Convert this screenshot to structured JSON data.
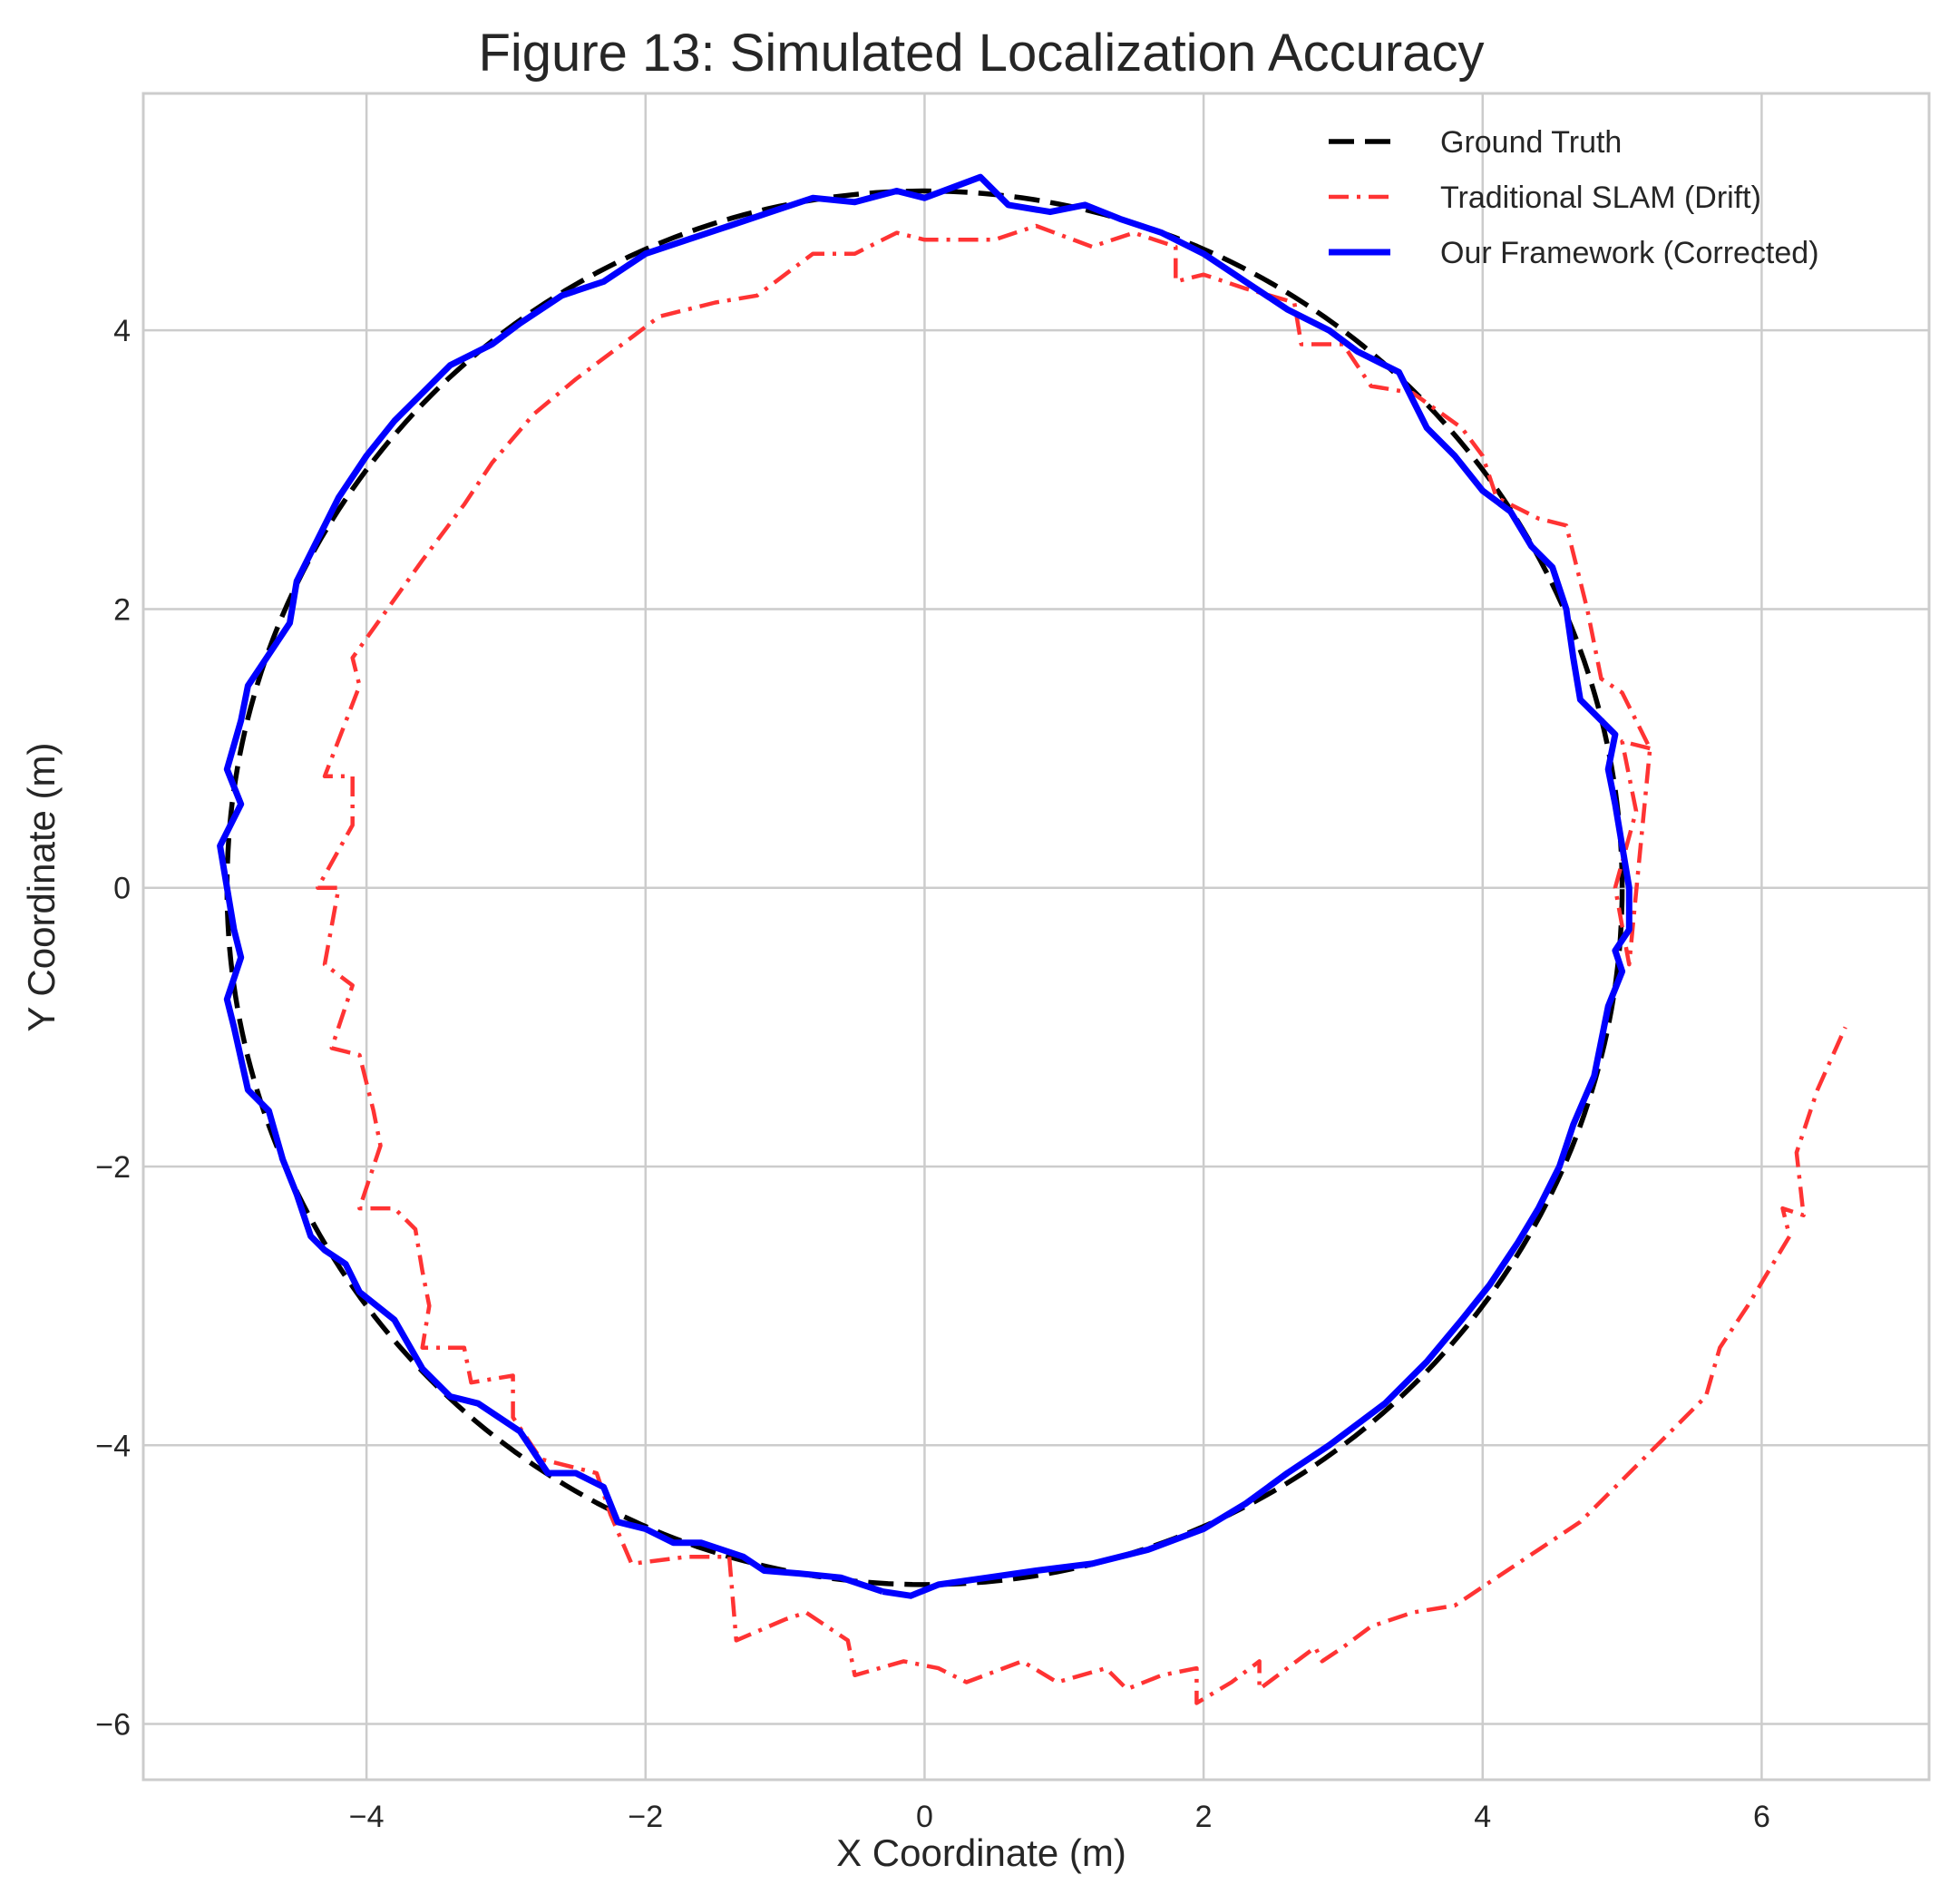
{
  "chart_data": {
    "type": "line",
    "title": "Figure 13: Simulated Localization Accuracy",
    "xlabel": "X Coordinate (m)",
    "ylabel": "Y Coordinate (m)",
    "xlim": [
      -5.6,
      7.2
    ],
    "ylim": [
      -6.4,
      5.7
    ],
    "xticks": [
      -4,
      -2,
      0,
      2,
      4,
      6
    ],
    "yticks": [
      -6,
      -4,
      -2,
      0,
      2,
      4
    ],
    "xtick_labels": [
      "−4",
      "−2",
      "0",
      "2",
      "4",
      "6"
    ],
    "ytick_labels": [
      "−6",
      "−4",
      "−2",
      "0",
      "2",
      "4"
    ],
    "grid": true,
    "legend_position": "top-right",
    "series": [
      {
        "name": "Ground Truth",
        "color": "#000000",
        "style": "dashed",
        "shape": "circle",
        "center": [
          0,
          0
        ],
        "radius": 5.0
      },
      {
        "name": "Traditional SLAM (Drift)",
        "color": "#ff3333",
        "style": "dashdot",
        "points": [
          [
            5.2,
            1.0
          ],
          [
            5.0,
            1.05
          ],
          [
            5.1,
            0.55
          ],
          [
            4.95,
            0.0
          ],
          [
            5.05,
            -0.55
          ],
          [
            5.2,
            1.0
          ],
          [
            5.0,
            1.4
          ],
          [
            4.85,
            1.5
          ],
          [
            4.75,
            2.0
          ],
          [
            4.6,
            2.6
          ],
          [
            4.4,
            2.65
          ],
          [
            4.1,
            2.8
          ],
          [
            4.0,
            3.1
          ],
          [
            3.85,
            3.3
          ],
          [
            3.5,
            3.55
          ],
          [
            3.2,
            3.6
          ],
          [
            3.0,
            3.9
          ],
          [
            2.7,
            3.9
          ],
          [
            2.65,
            4.2
          ],
          [
            2.3,
            4.3
          ],
          [
            2.0,
            4.4
          ],
          [
            1.8,
            4.35
          ],
          [
            1.8,
            4.6
          ],
          [
            1.5,
            4.7
          ],
          [
            1.2,
            4.6
          ],
          [
            0.8,
            4.75
          ],
          [
            0.5,
            4.65
          ],
          [
            0.0,
            4.65
          ],
          [
            -0.2,
            4.7
          ],
          [
            -0.5,
            4.55
          ],
          [
            -0.8,
            4.55
          ],
          [
            -1.0,
            4.4
          ],
          [
            -1.2,
            4.25
          ],
          [
            -1.5,
            4.2
          ],
          [
            -1.9,
            4.1
          ],
          [
            -2.1,
            3.95
          ],
          [
            -2.5,
            3.65
          ],
          [
            -2.8,
            3.4
          ],
          [
            -3.1,
            3.05
          ],
          [
            -3.3,
            2.75
          ],
          [
            -3.6,
            2.35
          ],
          [
            -3.85,
            2.0
          ],
          [
            -4.1,
            1.65
          ],
          [
            -4.05,
            1.45
          ],
          [
            -4.3,
            0.8
          ],
          [
            -4.1,
            0.8
          ],
          [
            -4.1,
            0.45
          ],
          [
            -4.35,
            0.0
          ],
          [
            -4.2,
            0.0
          ],
          [
            -4.3,
            -0.55
          ],
          [
            -4.1,
            -0.7
          ],
          [
            -4.25,
            -1.15
          ],
          [
            -4.05,
            -1.2
          ],
          [
            -3.95,
            -1.6
          ],
          [
            -3.9,
            -1.85
          ],
          [
            -4.05,
            -2.3
          ],
          [
            -3.8,
            -2.3
          ],
          [
            -3.65,
            -2.45
          ],
          [
            -3.6,
            -2.75
          ],
          [
            -3.55,
            -3.0
          ],
          [
            -3.6,
            -3.3
          ],
          [
            -3.3,
            -3.3
          ],
          [
            -3.25,
            -3.55
          ],
          [
            -2.95,
            -3.5
          ],
          [
            -2.95,
            -3.8
          ],
          [
            -2.75,
            -4.1
          ],
          [
            -2.55,
            -4.15
          ],
          [
            -2.35,
            -4.2
          ],
          [
            -2.25,
            -4.5
          ],
          [
            -2.1,
            -4.85
          ],
          [
            -1.7,
            -4.8
          ],
          [
            -1.4,
            -4.8
          ],
          [
            -1.35,
            -5.4
          ],
          [
            -1.0,
            -5.25
          ],
          [
            -0.85,
            -5.2
          ],
          [
            -0.55,
            -5.4
          ],
          [
            -0.5,
            -5.65
          ],
          [
            -0.15,
            -5.55
          ],
          [
            0.1,
            -5.6
          ],
          [
            0.3,
            -5.7
          ],
          [
            0.7,
            -5.55
          ],
          [
            0.95,
            -5.7
          ],
          [
            1.3,
            -5.6
          ],
          [
            1.45,
            -5.75
          ],
          [
            1.7,
            -5.65
          ],
          [
            1.95,
            -5.6
          ],
          [
            1.95,
            -5.85
          ],
          [
            2.2,
            -5.7
          ],
          [
            2.4,
            -5.55
          ],
          [
            2.4,
            -5.75
          ],
          [
            2.8,
            -5.45
          ],
          [
            2.85,
            -5.55
          ],
          [
            3.0,
            -5.45
          ],
          [
            3.2,
            -5.3
          ],
          [
            3.5,
            -5.2
          ],
          [
            3.8,
            -5.15
          ],
          [
            4.1,
            -4.95
          ],
          [
            4.4,
            -4.75
          ],
          [
            4.7,
            -4.55
          ],
          [
            5.0,
            -4.25
          ],
          [
            5.3,
            -3.95
          ],
          [
            5.6,
            -3.65
          ],
          [
            5.7,
            -3.3
          ],
          [
            5.9,
            -3.0
          ],
          [
            6.2,
            -2.5
          ],
          [
            6.15,
            -2.3
          ],
          [
            6.3,
            -2.35
          ],
          [
            6.25,
            -1.9
          ],
          [
            6.4,
            -1.45
          ],
          [
            6.6,
            -1.0
          ]
        ]
      },
      {
        "name": "Our Framework (Corrected)",
        "color": "#0000ff",
        "style": "solid",
        "points": [
          [
            -0.3,
            -5.05
          ],
          [
            -0.1,
            -5.08
          ],
          [
            0.1,
            -5.0
          ],
          [
            0.45,
            -4.95
          ],
          [
            0.8,
            -4.9
          ],
          [
            1.2,
            -4.85
          ],
          [
            1.6,
            -4.75
          ],
          [
            2.0,
            -4.6
          ],
          [
            2.3,
            -4.42
          ],
          [
            2.6,
            -4.2
          ],
          [
            2.9,
            -4.0
          ],
          [
            3.3,
            -3.7
          ],
          [
            3.6,
            -3.4
          ],
          [
            3.85,
            -3.1
          ],
          [
            4.05,
            -2.85
          ],
          [
            4.25,
            -2.55
          ],
          [
            4.4,
            -2.3
          ],
          [
            4.55,
            -2.0
          ],
          [
            4.65,
            -1.7
          ],
          [
            4.8,
            -1.35
          ],
          [
            4.85,
            -1.1
          ],
          [
            4.9,
            -0.85
          ],
          [
            5.0,
            -0.6
          ],
          [
            4.95,
            -0.45
          ],
          [
            5.05,
            -0.3
          ],
          [
            5.05,
            0.0
          ],
          [
            5.0,
            0.3
          ],
          [
            4.95,
            0.6
          ],
          [
            4.9,
            0.85
          ],
          [
            4.95,
            1.1
          ],
          [
            4.7,
            1.35
          ],
          [
            4.65,
            1.65
          ],
          [
            4.6,
            2.0
          ],
          [
            4.5,
            2.3
          ],
          [
            4.35,
            2.45
          ],
          [
            4.2,
            2.7
          ],
          [
            4.0,
            2.85
          ],
          [
            3.8,
            3.1
          ],
          [
            3.6,
            3.3
          ],
          [
            3.5,
            3.5
          ],
          [
            3.4,
            3.7
          ],
          [
            3.1,
            3.85
          ],
          [
            2.9,
            4.0
          ],
          [
            2.6,
            4.15
          ],
          [
            2.3,
            4.35
          ],
          [
            2.0,
            4.55
          ],
          [
            1.7,
            4.7
          ],
          [
            1.4,
            4.8
          ],
          [
            1.15,
            4.9
          ],
          [
            0.9,
            4.85
          ],
          [
            0.6,
            4.9
          ],
          [
            0.4,
            5.1
          ],
          [
            0.0,
            4.95
          ],
          [
            -0.2,
            5.0
          ],
          [
            -0.5,
            4.92
          ],
          [
            -0.8,
            4.95
          ],
          [
            -1.1,
            4.85
          ],
          [
            -1.4,
            4.75
          ],
          [
            -1.7,
            4.65
          ],
          [
            -2.0,
            4.55
          ],
          [
            -2.3,
            4.35
          ],
          [
            -2.6,
            4.25
          ],
          [
            -2.9,
            4.05
          ],
          [
            -3.1,
            3.9
          ],
          [
            -3.4,
            3.75
          ],
          [
            -3.6,
            3.55
          ],
          [
            -3.8,
            3.35
          ],
          [
            -4.0,
            3.1
          ],
          [
            -4.2,
            2.8
          ],
          [
            -4.35,
            2.5
          ],
          [
            -4.5,
            2.2
          ],
          [
            -4.55,
            1.9
          ],
          [
            -4.75,
            1.6
          ],
          [
            -4.85,
            1.45
          ],
          [
            -4.9,
            1.2
          ],
          [
            -5.0,
            0.85
          ],
          [
            -4.9,
            0.6
          ],
          [
            -5.05,
            0.3
          ],
          [
            -5.0,
            0.0
          ],
          [
            -4.95,
            -0.3
          ],
          [
            -4.9,
            -0.5
          ],
          [
            -5.0,
            -0.8
          ],
          [
            -4.95,
            -1.0
          ],
          [
            -4.85,
            -1.45
          ],
          [
            -4.7,
            -1.6
          ],
          [
            -4.6,
            -1.95
          ],
          [
            -4.5,
            -2.2
          ],
          [
            -4.4,
            -2.5
          ],
          [
            -4.3,
            -2.6
          ],
          [
            -4.15,
            -2.7
          ],
          [
            -4.05,
            -2.9
          ],
          [
            -3.8,
            -3.1
          ],
          [
            -3.6,
            -3.45
          ],
          [
            -3.4,
            -3.65
          ],
          [
            -3.2,
            -3.7
          ],
          [
            -2.9,
            -3.9
          ],
          [
            -2.7,
            -4.2
          ],
          [
            -2.5,
            -4.2
          ],
          [
            -2.3,
            -4.3
          ],
          [
            -2.2,
            -4.55
          ],
          [
            -2.0,
            -4.6
          ],
          [
            -1.8,
            -4.7
          ],
          [
            -1.6,
            -4.7
          ],
          [
            -1.3,
            -4.8
          ],
          [
            -1.15,
            -4.9
          ],
          [
            -0.9,
            -4.92
          ],
          [
            -0.6,
            -4.95
          ],
          [
            -0.3,
            -5.05
          ]
        ]
      }
    ]
  }
}
